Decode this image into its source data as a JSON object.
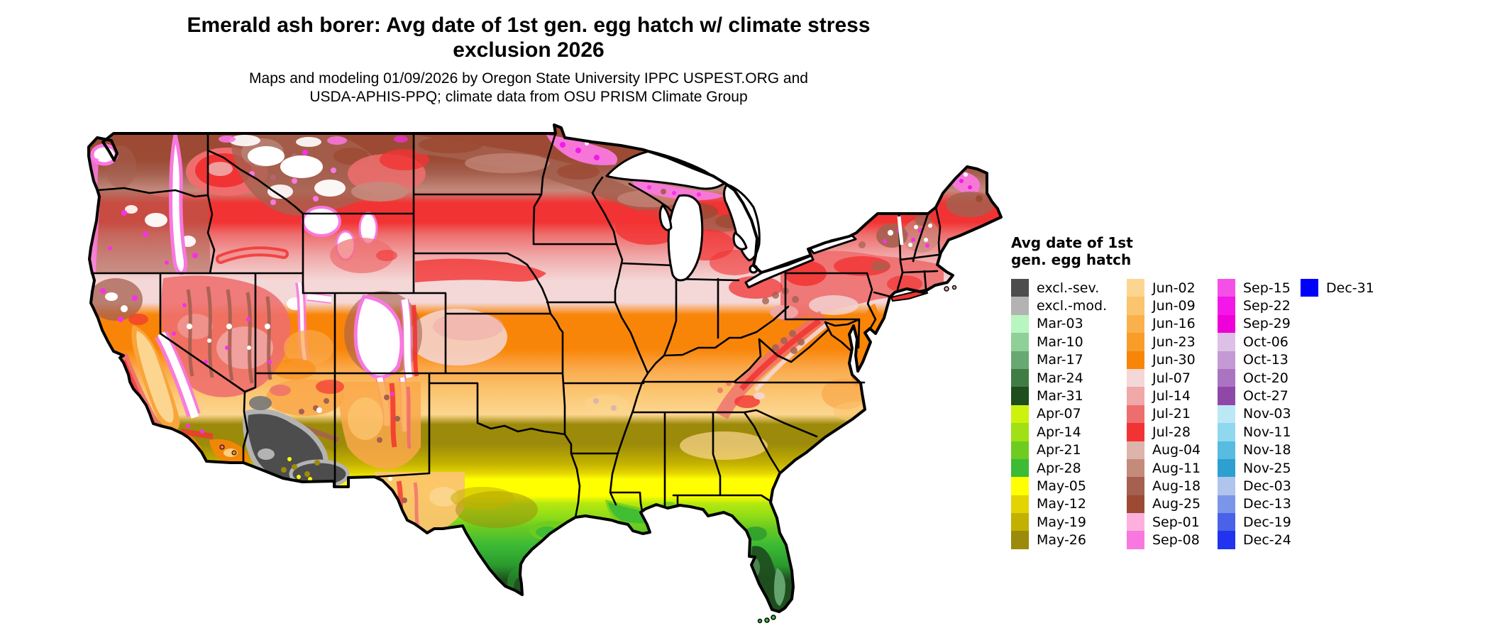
{
  "title": "Emerald ash borer: Avg date of 1st gen. egg hatch w/ climate stress exclusion 2026",
  "subtitle": "Maps and modeling 01/09/2026 by Oregon State University IPPC USPEST.ORG and USDA-APHIS-PPQ; climate data from OSU PRISM Climate Group",
  "map": {
    "region": "Continental United States",
    "type": "raster-phenology-map"
  },
  "legend": {
    "title_lines": [
      "Avg date of 1st",
      "gen. egg hatch"
    ],
    "columns": [
      {
        "entries": [
          {
            "label": "excl.-sev.",
            "color": "#4d4d4d"
          },
          {
            "label": "excl.-mod.",
            "color": "#b3b3b3"
          },
          {
            "label": "Mar-03",
            "color": "#b8f5c0"
          },
          {
            "label": "Mar-10",
            "color": "#8ed098"
          },
          {
            "label": "Mar-17",
            "color": "#68a873"
          },
          {
            "label": "Mar-24",
            "color": "#3f7d44"
          },
          {
            "label": "Mar-31",
            "color": "#1e4d1e"
          },
          {
            "label": "Apr-07",
            "color": "#ccf20d"
          },
          {
            "label": "Apr-14",
            "color": "#a0e014"
          },
          {
            "label": "Apr-21",
            "color": "#6ecc1f"
          },
          {
            "label": "Apr-28",
            "color": "#3dbb35"
          },
          {
            "label": "May-05",
            "color": "#ffff00"
          },
          {
            "label": "May-12",
            "color": "#e3d400"
          },
          {
            "label": "May-19",
            "color": "#c2b100"
          },
          {
            "label": "May-26",
            "color": "#9c8a0a"
          }
        ]
      },
      {
        "entries": [
          {
            "label": "Jun-02",
            "color": "#fcd690"
          },
          {
            "label": "Jun-09",
            "color": "#fbc46e"
          },
          {
            "label": "Jun-16",
            "color": "#fab14c"
          },
          {
            "label": "Jun-23",
            "color": "#f99d2a"
          },
          {
            "label": "Jun-30",
            "color": "#f98508"
          },
          {
            "label": "Jul-07",
            "color": "#f4d7d7"
          },
          {
            "label": "Jul-14",
            "color": "#f0a8a8"
          },
          {
            "label": "Jul-21",
            "color": "#ee6e6e"
          },
          {
            "label": "Jul-28",
            "color": "#f23333"
          },
          {
            "label": "Aug-04",
            "color": "#ddb4ac"
          },
          {
            "label": "Aug-11",
            "color": "#c48a7c"
          },
          {
            "label": "Aug-18",
            "color": "#a5604f"
          },
          {
            "label": "Aug-25",
            "color": "#9c4a33"
          },
          {
            "label": "Sep-01",
            "color": "#fdb0dd"
          },
          {
            "label": "Sep-08",
            "color": "#f878e0"
          }
        ]
      },
      {
        "entries": [
          {
            "label": "Sep-15",
            "color": "#f450e8"
          },
          {
            "label": "Sep-22",
            "color": "#f318e8"
          },
          {
            "label": "Sep-29",
            "color": "#ee00d8"
          },
          {
            "label": "Oct-06",
            "color": "#ddc0e6"
          },
          {
            "label": "Oct-13",
            "color": "#c49ad4"
          },
          {
            "label": "Oct-20",
            "color": "#aa74c0"
          },
          {
            "label": "Oct-27",
            "color": "#8f48a8"
          },
          {
            "label": "Nov-03",
            "color": "#bce8f5"
          },
          {
            "label": "Nov-11",
            "color": "#90d8ee"
          },
          {
            "label": "Nov-18",
            "color": "#58bce0"
          },
          {
            "label": "Nov-25",
            "color": "#2da0d0"
          },
          {
            "label": "Dec-03",
            "color": "#b0c4ec"
          },
          {
            "label": "Dec-13",
            "color": "#7b96e8"
          },
          {
            "label": "Dec-19",
            "color": "#4a62e8"
          },
          {
            "label": "Dec-24",
            "color": "#2033ee"
          }
        ]
      },
      {
        "entries": [
          {
            "label": "Dec-31",
            "color": "#0000ff"
          }
        ]
      }
    ]
  }
}
